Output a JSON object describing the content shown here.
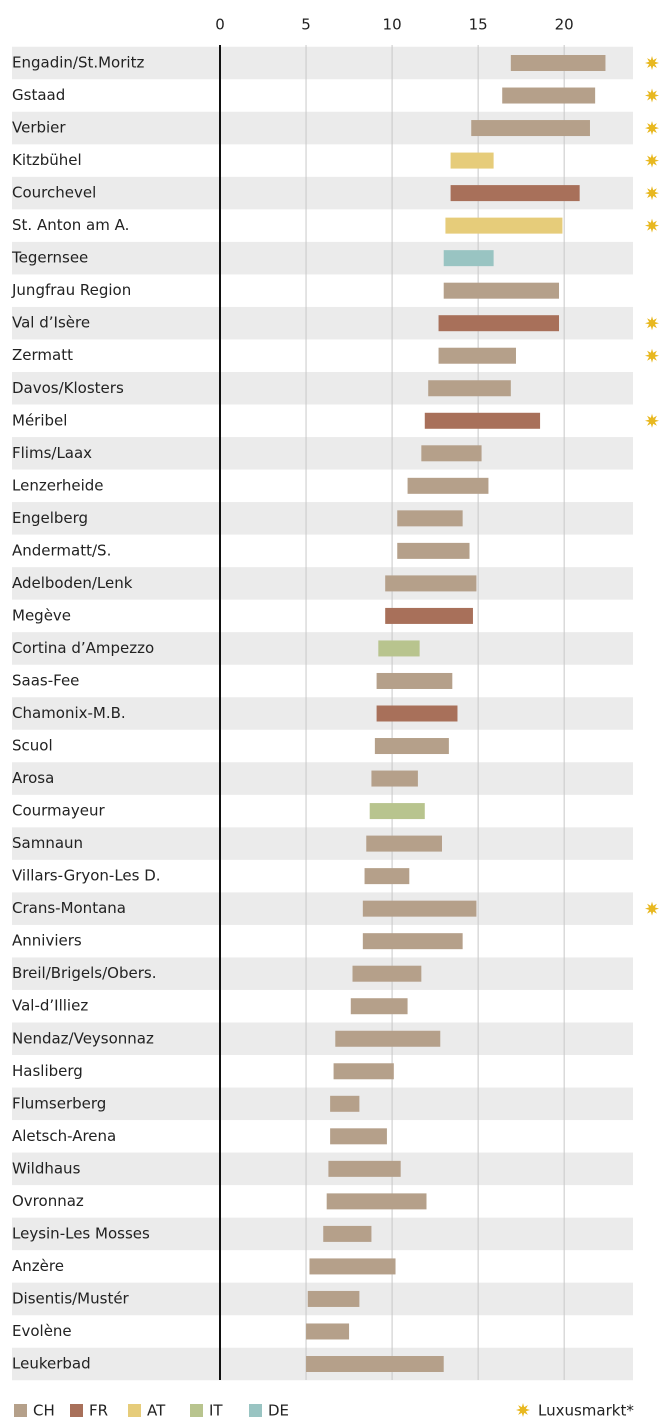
{
  "chart_data": {
    "type": "range-bar",
    "categories": [
      "Engadin/St.Moritz",
      "Gstaad",
      "Verbier",
      "Kitzbühel",
      "Courchevel",
      "St. Anton am A.",
      "Tegernsee",
      "Jungfrau Region",
      "Val d’Isère",
      "Zermatt",
      "Davos/Klosters",
      "Méribel",
      "Flims/Laax",
      "Lenzerheide",
      "Engelberg",
      "Andermatt/S.",
      "Adelboden/Lenk",
      "Megève",
      "Cortina d’Ampezzo",
      "Saas-Fee",
      "Chamonix-M.B.",
      "Scuol",
      "Arosa",
      "Courmayeur",
      "Samnaun",
      "Villars-Gryon-Les D.",
      "Crans-Montana",
      "Anniviers",
      "Breil/Brigels/Obers.",
      "Val-d’Illiez",
      "Nendaz/Veysonnaz",
      "Hasliberg",
      "Flumserberg",
      "Aletsch-Arena",
      "Wildhaus",
      "Ovronnaz",
      "Leysin-Les Mosses",
      "Anzère",
      "Disentis/Mustér",
      "Evolène",
      "Leukerbad"
    ],
    "series": [
      {
        "name": "CH",
        "color": "#b5a08a",
        "values": [
          [
            16.9,
            22.4
          ],
          [
            16.4,
            21.8
          ],
          [
            14.6,
            21.5
          ],
          null,
          null,
          null,
          null,
          [
            13.0,
            19.7
          ],
          null,
          [
            12.7,
            17.2
          ],
          [
            12.1,
            16.9
          ],
          null,
          [
            11.7,
            15.2
          ],
          [
            10.9,
            15.6
          ],
          [
            10.3,
            14.1
          ],
          [
            10.3,
            14.5
          ],
          [
            9.6,
            14.9
          ],
          null,
          null,
          [
            9.1,
            13.5
          ],
          null,
          [
            9.0,
            13.3
          ],
          [
            8.8,
            11.5
          ],
          null,
          [
            8.5,
            12.9
          ],
          [
            8.4,
            11.0
          ],
          [
            8.3,
            14.9
          ],
          [
            8.3,
            14.1
          ],
          [
            7.7,
            11.7
          ],
          [
            7.6,
            10.9
          ],
          [
            6.7,
            12.8
          ],
          [
            6.6,
            10.1
          ],
          [
            6.4,
            8.1
          ],
          [
            6.4,
            9.7
          ],
          [
            6.3,
            10.5
          ],
          [
            6.2,
            12.0
          ],
          [
            6.0,
            8.8
          ],
          [
            5.2,
            10.2
          ],
          [
            5.1,
            8.1
          ],
          [
            5.0,
            7.5
          ],
          [
            5.0,
            13.0
          ]
        ]
      },
      {
        "name": "FR",
        "color": "#a8705a",
        "values": [
          null,
          null,
          null,
          null,
          [
            13.4,
            20.9
          ],
          null,
          null,
          null,
          [
            12.7,
            19.7
          ],
          null,
          null,
          [
            11.9,
            18.6
          ],
          null,
          null,
          null,
          null,
          null,
          [
            9.6,
            14.7
          ],
          null,
          null,
          [
            9.1,
            13.8
          ],
          null,
          null,
          null,
          null,
          null,
          null,
          null,
          null,
          null,
          null,
          null,
          null,
          null,
          null,
          null,
          null,
          null,
          null,
          null,
          null
        ]
      },
      {
        "name": "AT",
        "color": "#e6cc7a",
        "values": [
          null,
          null,
          null,
          [
            13.4,
            15.9
          ],
          null,
          [
            13.1,
            19.9
          ],
          null,
          null,
          null,
          null,
          null,
          null,
          null,
          null,
          null,
          null,
          null,
          null,
          null,
          null,
          null,
          null,
          null,
          null,
          null,
          null,
          null,
          null,
          null,
          null,
          null,
          null,
          null,
          null,
          null,
          null,
          null,
          null,
          null,
          null,
          null
        ]
      },
      {
        "name": "IT",
        "color": "#b8c48e",
        "values": [
          null,
          null,
          null,
          null,
          null,
          null,
          null,
          null,
          null,
          null,
          null,
          null,
          null,
          null,
          null,
          null,
          null,
          null,
          [
            9.2,
            11.6
          ],
          null,
          null,
          null,
          null,
          [
            8.7,
            11.9
          ],
          null,
          null,
          null,
          null,
          null,
          null,
          null,
          null,
          null,
          null,
          null,
          null,
          null,
          null,
          null,
          null,
          null
        ]
      },
      {
        "name": "DE",
        "color": "#99c4c2",
        "values": [
          null,
          null,
          null,
          null,
          null,
          null,
          [
            13.0,
            15.9
          ],
          null,
          null,
          null,
          null,
          null,
          null,
          null,
          null,
          null,
          null,
          null,
          null,
          null,
          null,
          null,
          null,
          null,
          null,
          null,
          null,
          null,
          null,
          null,
          null,
          null,
          null,
          null,
          null,
          null,
          null,
          null,
          null,
          null,
          null
        ]
      }
    ],
    "luxury": [
      true,
      true,
      true,
      true,
      true,
      true,
      false,
      false,
      true,
      true,
      false,
      true,
      false,
      false,
      false,
      false,
      false,
      false,
      false,
      false,
      false,
      false,
      false,
      false,
      false,
      false,
      true,
      false,
      false,
      false,
      false,
      false,
      false,
      false,
      false,
      false,
      false,
      false,
      false,
      false,
      false
    ],
    "luxury_label": "Luxusmarkt*",
    "luxury_color": "#e8b820",
    "xlim": [
      0,
      24
    ],
    "xticks": [
      0,
      5,
      10,
      15,
      20
    ],
    "grid": true
  }
}
